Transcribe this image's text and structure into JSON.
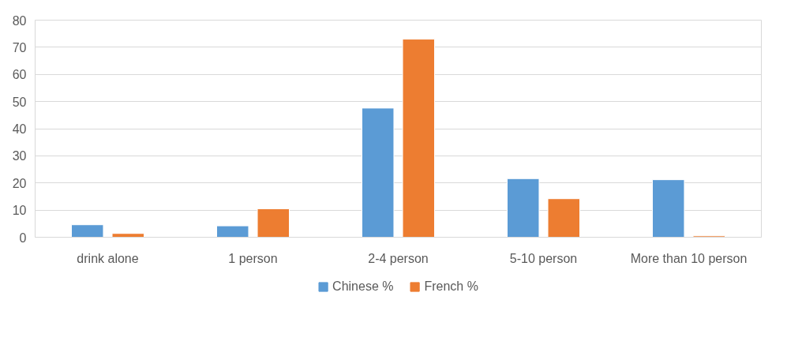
{
  "chart_data": {
    "type": "bar",
    "categories": [
      "drink alone",
      "1 person",
      "2-4 person",
      "5-10 person",
      "More than 10 person"
    ],
    "series": [
      {
        "name": "Chinese %",
        "color": "#5b9bd5",
        "values": [
          4.6,
          4.2,
          47.6,
          21.6,
          21.2
        ]
      },
      {
        "name": "French %",
        "color": "#ed7d31",
        "values": [
          1.4,
          10.5,
          73.0,
          14.2,
          0.5
        ]
      }
    ],
    "ylim": [
      0,
      80
    ],
    "yticks": [
      0,
      10,
      20,
      30,
      40,
      50,
      60,
      70,
      80
    ],
    "grid": "y",
    "legend": "bottom"
  }
}
